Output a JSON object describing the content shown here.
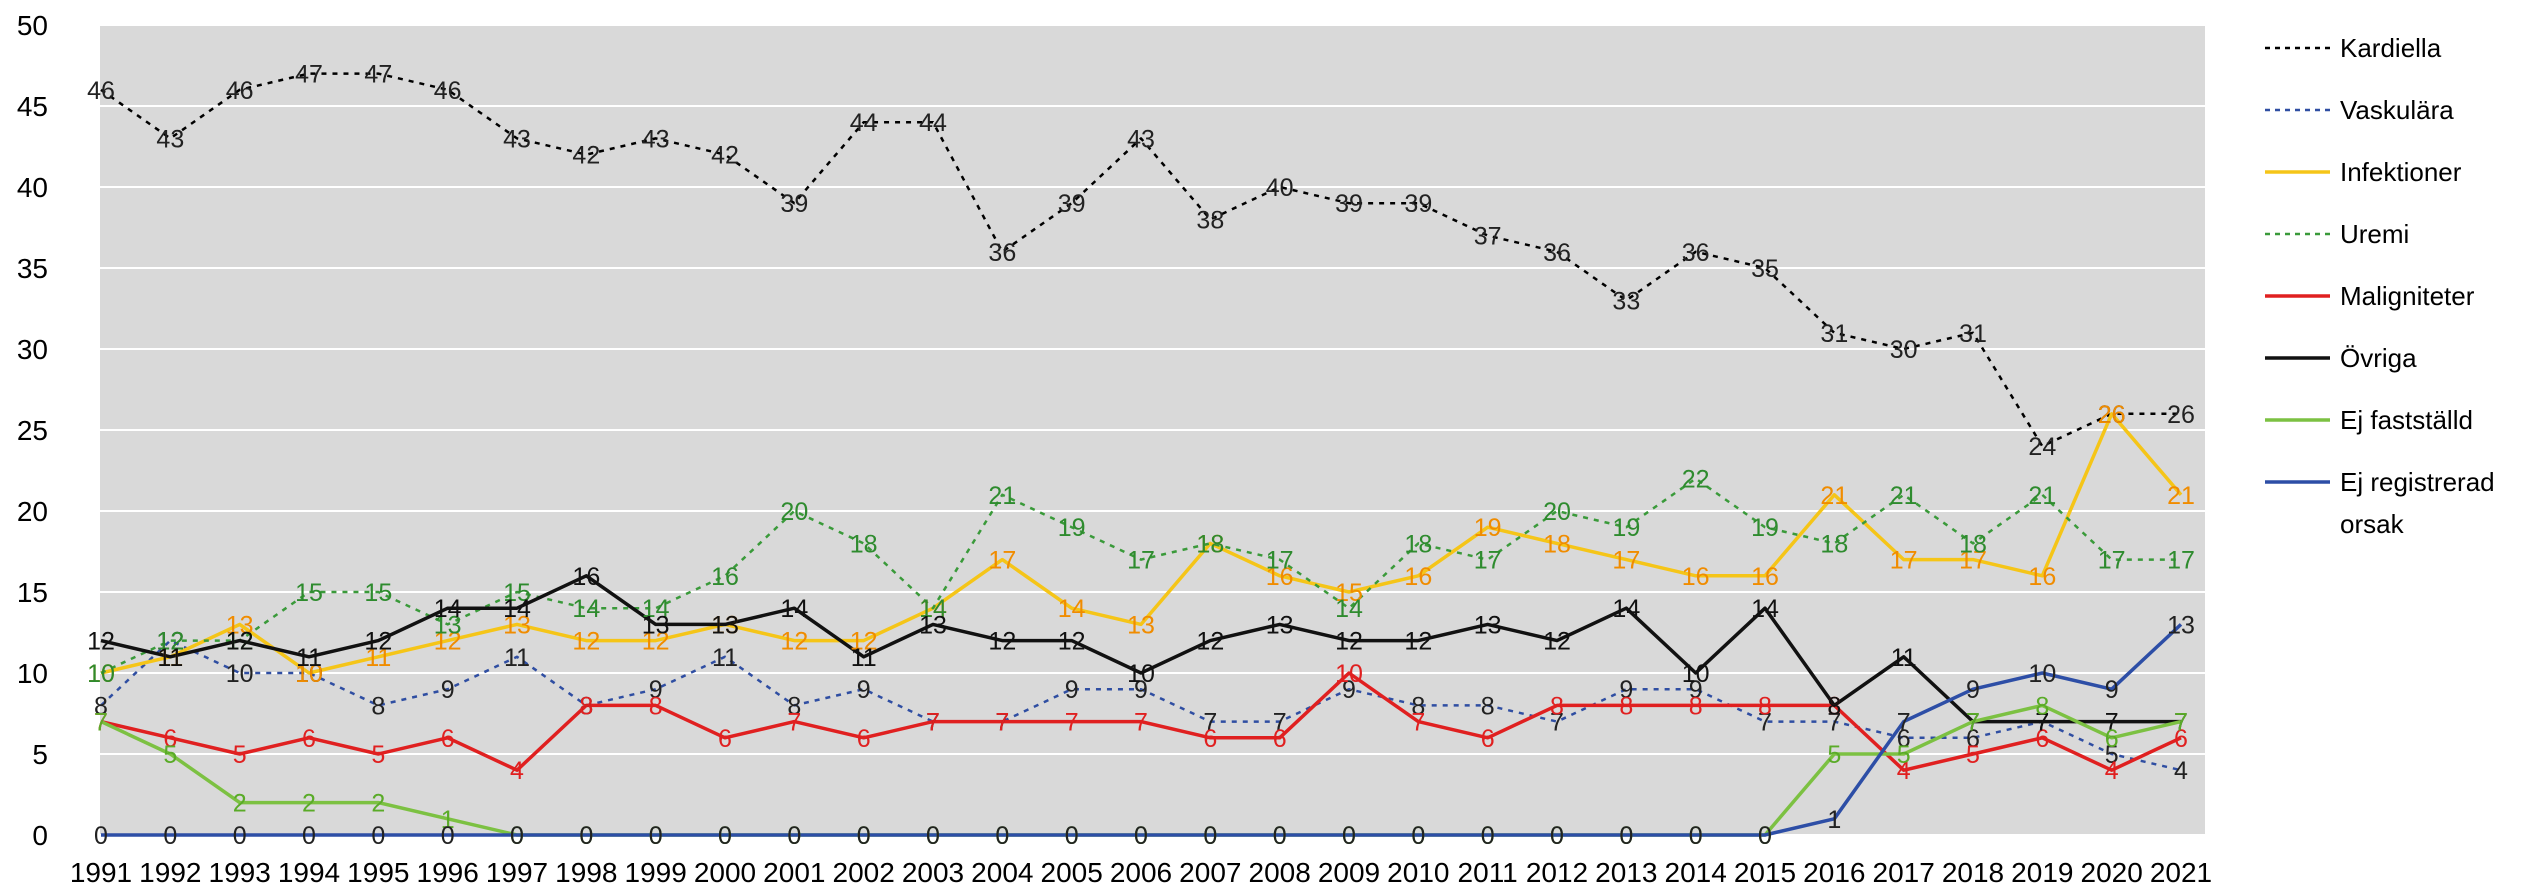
{
  "chart_data": {
    "type": "line",
    "title": "",
    "xlabel": "",
    "ylabel": "",
    "ylim": [
      0,
      50
    ],
    "yticks": [
      0,
      5,
      10,
      15,
      20,
      25,
      30,
      35,
      40,
      45,
      50
    ],
    "grid": "horizontal",
    "legend_position": "right",
    "background_color": "#d9d9d9",
    "x": [
      1991,
      1992,
      1993,
      1994,
      1995,
      1996,
      1997,
      1998,
      1999,
      2000,
      2001,
      2002,
      2003,
      2004,
      2005,
      2006,
      2007,
      2008,
      2009,
      2010,
      2011,
      2012,
      2013,
      2014,
      2015,
      2016,
      2017,
      2018,
      2019,
      2020,
      2021
    ],
    "series": [
      {
        "name": "Kardiella",
        "color": "#000000",
        "dashed": true,
        "label_color": "#222222",
        "values": [
          46,
          43,
          46,
          47,
          47,
          46,
          43,
          42,
          43,
          42,
          39,
          44,
          44,
          36,
          39,
          43,
          38,
          40,
          39,
          39,
          37,
          36,
          33,
          36,
          35,
          31,
          30,
          31,
          24,
          26,
          26
        ]
      },
      {
        "name": "Vaskulära",
        "color": "#2f4ea2",
        "dashed": true,
        "label_color": "#222222",
        "values": [
          8,
          12,
          10,
          10,
          8,
          9,
          11,
          8,
          9,
          11,
          8,
          9,
          7,
          7,
          9,
          9,
          7,
          7,
          9,
          8,
          8,
          7,
          9,
          9,
          7,
          7,
          6,
          6,
          7,
          5,
          4
        ]
      },
      {
        "name": "Infektioner",
        "color": "#f5c518",
        "dashed": false,
        "label_color": "#f08c00",
        "values": [
          10,
          11,
          13,
          10,
          11,
          12,
          13,
          12,
          12,
          13,
          12,
          12,
          14,
          17,
          14,
          13,
          18,
          16,
          15,
          16,
          19,
          18,
          17,
          16,
          16,
          21,
          17,
          17,
          16,
          26,
          21
        ]
      },
      {
        "name": "Uremi",
        "color": "#3a9a3a",
        "dashed": true,
        "label_color": "#2e8b2e",
        "values": [
          10,
          12,
          12,
          15,
          15,
          13,
          15,
          14,
          14,
          16,
          20,
          18,
          14,
          21,
          19,
          17,
          18,
          17,
          14,
          18,
          17,
          20,
          19,
          22,
          19,
          18,
          21,
          18,
          21,
          17,
          17
        ]
      },
      {
        "name": "Maligniteter",
        "color": "#e02020",
        "dashed": false,
        "label_color": "#e02020",
        "values": [
          7,
          6,
          5,
          6,
          5,
          6,
          4,
          8,
          8,
          6,
          7,
          6,
          7,
          7,
          7,
          7,
          6,
          6,
          10,
          7,
          6,
          8,
          8,
          8,
          8,
          8,
          4,
          5,
          6,
          4,
          6
        ]
      },
      {
        "name": "Övriga",
        "color": "#111111",
        "dashed": false,
        "label_color": "#111111",
        "values": [
          12,
          11,
          12,
          11,
          12,
          14,
          14,
          16,
          13,
          13,
          14,
          11,
          13,
          12,
          12,
          10,
          12,
          13,
          12,
          12,
          13,
          12,
          14,
          10,
          14,
          8,
          11,
          7,
          7,
          7,
          7
        ]
      },
      {
        "name": "Ej fastställd",
        "color": "#7cc142",
        "dashed": false,
        "label_color": "#5aab28",
        "values": [
          7,
          5,
          2,
          2,
          2,
          1,
          0,
          0,
          0,
          0,
          0,
          0,
          0,
          0,
          0,
          0,
          0,
          0,
          0,
          0,
          0,
          0,
          0,
          0,
          0,
          5,
          5,
          7,
          8,
          6,
          7
        ]
      },
      {
        "name": "Ej registrerad orsak",
        "color": "#2d4ea6",
        "dashed": false,
        "label_color": "#222222",
        "values": [
          0,
          0,
          0,
          0,
          0,
          0,
          0,
          0,
          0,
          0,
          0,
          0,
          0,
          0,
          0,
          0,
          0,
          0,
          0,
          0,
          0,
          0,
          0,
          0,
          0,
          1,
          7,
          9,
          10,
          9,
          13
        ]
      }
    ]
  }
}
